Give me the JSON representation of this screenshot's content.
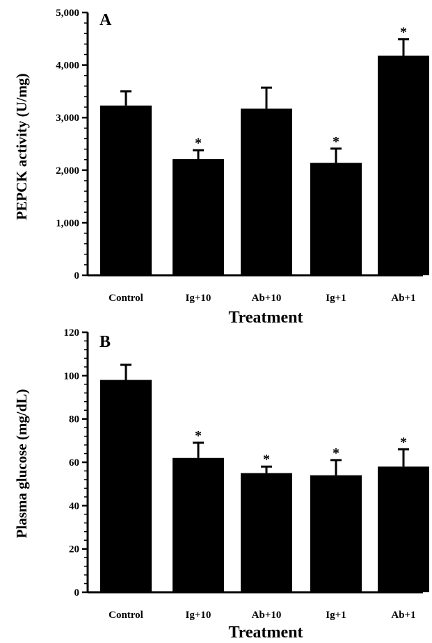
{
  "chart_data": [
    {
      "panel": "A",
      "type": "bar",
      "categories": [
        "Control",
        "Ig+10",
        "Ab+10",
        "Ig+1",
        "Ab+1"
      ],
      "values": [
        3230,
        2210,
        3170,
        2140,
        4180
      ],
      "errors": [
        270,
        170,
        400,
        270,
        310
      ],
      "significant": [
        false,
        true,
        false,
        true,
        true
      ],
      "significance_marker": "*",
      "ylabel": "PEPCK activity (U/mg)",
      "xlabel": "Treatment",
      "ylim": [
        0,
        5000
      ],
      "yticks": [
        0,
        1000,
        2000,
        3000,
        4000,
        5000
      ],
      "ytick_labels": [
        "0",
        "1,000",
        "2,000",
        "3,000",
        "4,000",
        "5,000"
      ],
      "grid": false,
      "bar_color": "#000000"
    },
    {
      "panel": "B",
      "type": "bar",
      "categories": [
        "Control",
        "Ig+10",
        "Ab+10",
        "Ig+1",
        "Ab+1"
      ],
      "values": [
        98,
        62,
        55,
        54,
        58
      ],
      "errors": [
        7,
        7,
        3,
        7,
        8
      ],
      "significant": [
        false,
        true,
        true,
        true,
        true
      ],
      "significance_marker": "*",
      "ylabel": "Plasma glucose (mg/dL)",
      "xlabel": "Treatment",
      "ylim": [
        0,
        120
      ],
      "yticks": [
        0,
        20,
        40,
        60,
        80,
        100,
        120
      ],
      "ytick_labels": [
        "0",
        "20",
        "40",
        "60",
        "80",
        "100",
        "120"
      ],
      "grid": false,
      "bar_color": "#000000"
    }
  ]
}
